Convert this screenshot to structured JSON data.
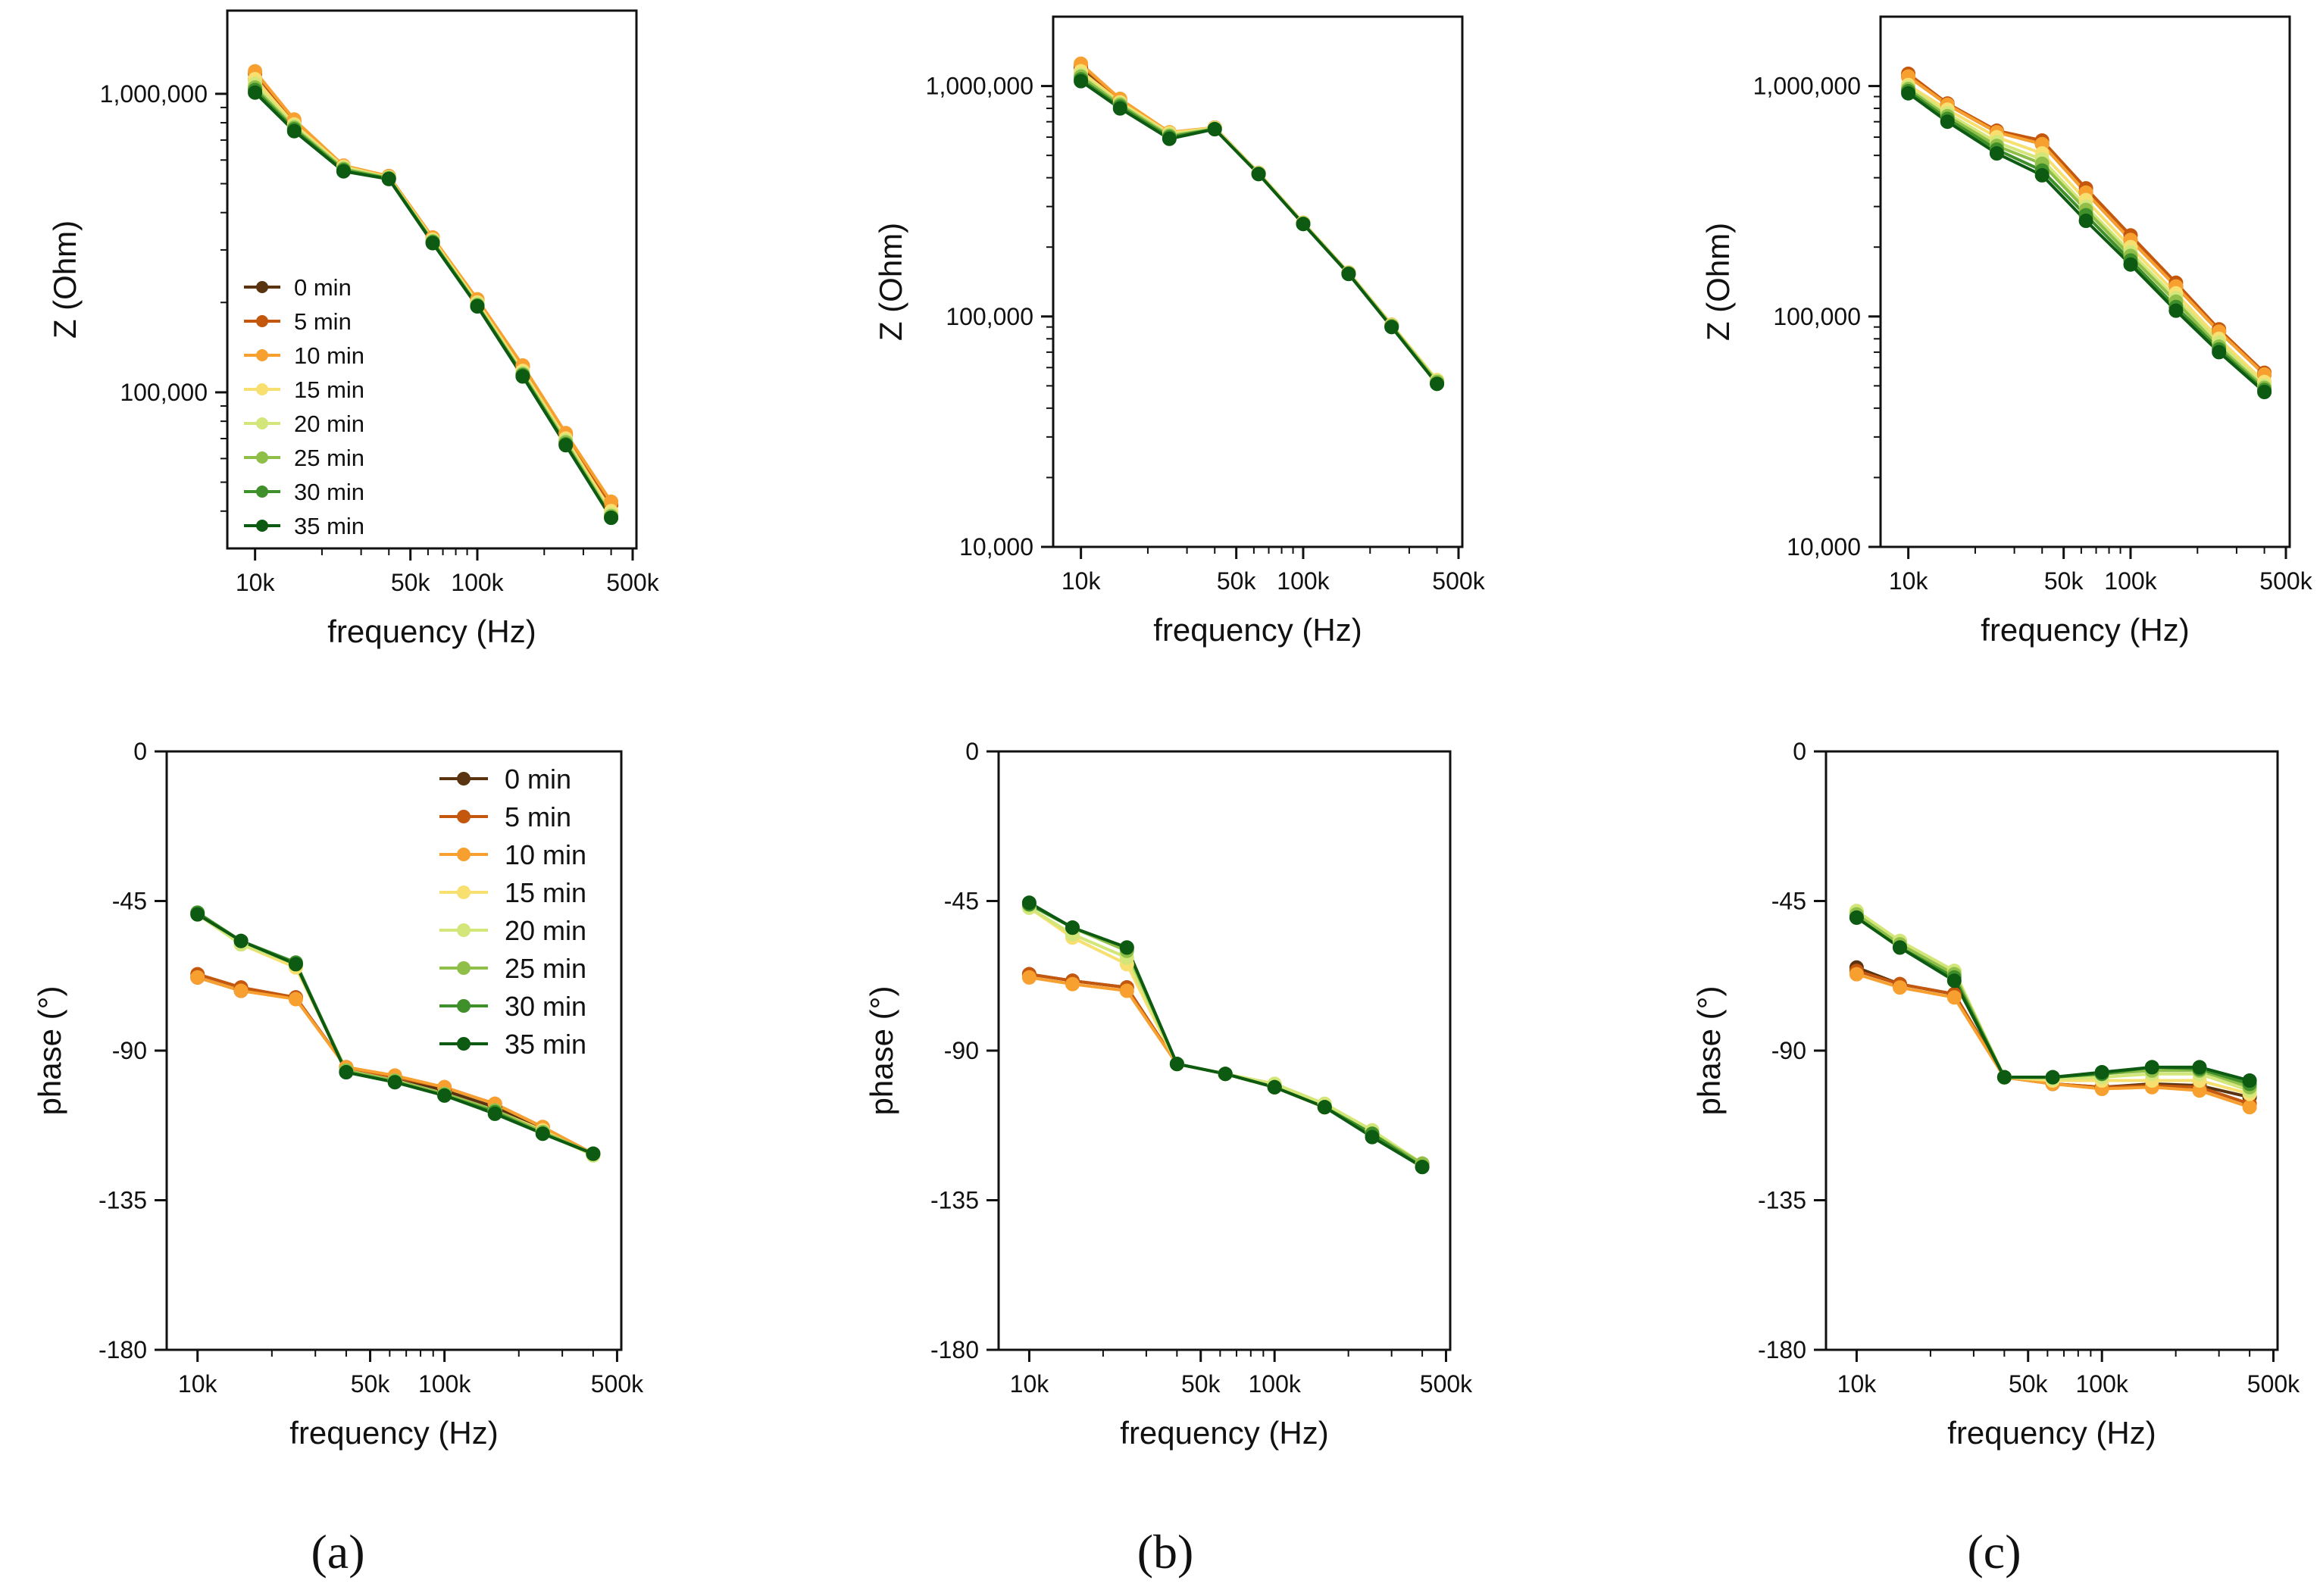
{
  "figure": {
    "panel_labels": [
      "(a)",
      "(b)",
      "(c)"
    ],
    "series_names": [
      "0 min",
      "5 min",
      "10 min",
      "15 min",
      "20 min",
      "25 min",
      "30 min",
      "35 min"
    ],
    "series_colors": [
      "#5a3310",
      "#c4570e",
      "#f7a030",
      "#f7df70",
      "#d2e67a",
      "#8fbf48",
      "#3f8f2a",
      "#0d5a12"
    ]
  },
  "chart_data": [
    {
      "id": "a-top",
      "type": "line",
      "xscale": "log",
      "yscale": "log",
      "xlabel": "frequency (Hz)",
      "ylabel": "Z (Ohm)",
      "xlim": [
        7500,
        520000
      ],
      "ylim": [
        30000,
        1900000
      ],
      "xticks": [
        10000,
        50000,
        100000,
        500000
      ],
      "xticklabels": [
        "10k",
        "50k",
        "100k",
        "500k"
      ],
      "yticks": [
        100000,
        1000000
      ],
      "yticklabels": [
        "100,000",
        "1,000,000"
      ],
      "legend": "left",
      "legend_style": "small",
      "x": [
        10000,
        15000,
        25000,
        40000,
        63000,
        100000,
        160000,
        250000,
        400000
      ],
      "series": [
        {
          "name": "0 min",
          "values": [
            1120000,
            790000,
            560000,
            520000,
            320000,
            195000,
            115000,
            68000,
            39000
          ]
        },
        {
          "name": "5 min",
          "values": [
            1170000,
            810000,
            570000,
            530000,
            330000,
            203000,
            122000,
            72000,
            42000
          ]
        },
        {
          "name": "10 min",
          "values": [
            1190000,
            820000,
            575000,
            530000,
            330000,
            205000,
            123000,
            73000,
            43000
          ]
        },
        {
          "name": "15 min",
          "values": [
            1120000,
            790000,
            570000,
            525000,
            325000,
            200000,
            118000,
            70000,
            40000
          ]
        },
        {
          "name": "20 min",
          "values": [
            1080000,
            780000,
            565000,
            525000,
            322000,
            198000,
            116000,
            69000,
            39000
          ]
        },
        {
          "name": "25 min",
          "values": [
            1050000,
            770000,
            560000,
            522000,
            320000,
            196000,
            115000,
            68000,
            38500
          ]
        },
        {
          "name": "30 min",
          "values": [
            1030000,
            760000,
            555000,
            520000,
            318000,
            195000,
            114000,
            67000,
            38000
          ]
        },
        {
          "name": "35 min",
          "values": [
            1010000,
            750000,
            550000,
            518000,
            316000,
            194000,
            113000,
            66500,
            38000
          ]
        }
      ]
    },
    {
      "id": "b-top",
      "type": "line",
      "xscale": "log",
      "yscale": "log",
      "xlabel": "frequency (Hz)",
      "ylabel": "Z (Ohm)",
      "xlim": [
        7500,
        520000
      ],
      "ylim": [
        10000,
        2000000
      ],
      "xticks": [
        10000,
        50000,
        100000,
        500000
      ],
      "xticklabels": [
        "10k",
        "50k",
        "100k",
        "500k"
      ],
      "yticks": [
        10000,
        100000,
        1000000
      ],
      "yticklabels": [
        "10,000",
        "100,000",
        "1,000,000"
      ],
      "legend": "none",
      "x": [
        10000,
        15000,
        25000,
        40000,
        63000,
        100000,
        160000,
        250000,
        400000
      ],
      "series": [
        {
          "name": "0 min",
          "values": [
            1200000,
            860000,
            620000,
            660000,
            420000,
            255000,
            155000,
            92000,
            52000
          ]
        },
        {
          "name": "5 min",
          "values": [
            1230000,
            870000,
            625000,
            660000,
            420000,
            255000,
            155000,
            92000,
            52000
          ]
        },
        {
          "name": "10 min",
          "values": [
            1250000,
            880000,
            630000,
            660000,
            420000,
            255000,
            155000,
            92000,
            52000
          ]
        },
        {
          "name": "15 min",
          "values": [
            1160000,
            850000,
            625000,
            658000,
            420000,
            255000,
            155000,
            92000,
            53000
          ]
        },
        {
          "name": "20 min",
          "values": [
            1120000,
            840000,
            615000,
            655000,
            418000,
            254000,
            154000,
            91000,
            52500
          ]
        },
        {
          "name": "25 min",
          "values": [
            1100000,
            830000,
            608000,
            652000,
            416000,
            253000,
            154000,
            91000,
            52000
          ]
        },
        {
          "name": "30 min",
          "values": [
            1070000,
            815000,
            600000,
            650000,
            415000,
            252000,
            153000,
            90000,
            51000
          ]
        },
        {
          "name": "35 min",
          "values": [
            1050000,
            800000,
            590000,
            650000,
            415000,
            252000,
            153000,
            90000,
            51000
          ]
        }
      ]
    },
    {
      "id": "c-top",
      "type": "line",
      "xscale": "log",
      "yscale": "log",
      "xlabel": "frequency (Hz)",
      "ylabel": "Z (Ohm)",
      "xlim": [
        7500,
        520000
      ],
      "ylim": [
        10000,
        2000000
      ],
      "xticks": [
        10000,
        50000,
        100000,
        500000
      ],
      "xticklabels": [
        "10k",
        "50k",
        "100k",
        "500k"
      ],
      "yticks": [
        10000,
        100000,
        1000000
      ],
      "yticklabels": [
        "10,000",
        "100,000",
        "1,000,000"
      ],
      "legend": "none",
      "x": [
        10000,
        15000,
        25000,
        40000,
        63000,
        100000,
        160000,
        250000,
        400000
      ],
      "series": [
        {
          "name": "0 min",
          "values": [
            1100000,
            830000,
            630000,
            560000,
            345000,
            215000,
            135000,
            86000,
            56000
          ]
        },
        {
          "name": "5 min",
          "values": [
            1130000,
            840000,
            640000,
            580000,
            360000,
            225000,
            140000,
            88000,
            57000
          ]
        },
        {
          "name": "10 min",
          "values": [
            1100000,
            830000,
            630000,
            560000,
            345000,
            215000,
            135000,
            86000,
            56000
          ]
        },
        {
          "name": "15 min",
          "values": [
            1010000,
            790000,
            600000,
            510000,
            320000,
            200000,
            126000,
            80000,
            52000
          ]
        },
        {
          "name": "20 min",
          "values": [
            990000,
            760000,
            570000,
            480000,
            300000,
            190000,
            120000,
            77000,
            50000
          ]
        },
        {
          "name": "25 min",
          "values": [
            970000,
            740000,
            550000,
            460000,
            290000,
            183000,
            116000,
            74000,
            49000
          ]
        },
        {
          "name": "30 min",
          "values": [
            950000,
            720000,
            530000,
            430000,
            275000,
            175000,
            110000,
            72000,
            48000
          ]
        },
        {
          "name": "35 min",
          "values": [
            930000,
            700000,
            510000,
            410000,
            260000,
            168000,
            106000,
            70000,
            47000
          ]
        }
      ]
    },
    {
      "id": "a-bottom",
      "type": "line",
      "xscale": "log",
      "yscale": "linear",
      "xlabel": "frequency (Hz)",
      "ylabel": "phase (°)",
      "xlim": [
        7500,
        520000
      ],
      "ylim": [
        -180,
        0
      ],
      "xticks": [
        10000,
        50000,
        100000,
        500000
      ],
      "xticklabels": [
        "10k",
        "50k",
        "100k",
        "500k"
      ],
      "yticks": [
        0,
        -45,
        -90,
        -135,
        -180
      ],
      "yticklabels": [
        "0",
        "-45",
        "-90",
        "-135",
        "-180"
      ],
      "legend": "top-right",
      "legend_style": "large",
      "x": [
        10000,
        15000,
        25000,
        40000,
        63000,
        100000,
        160000,
        250000,
        400000
      ],
      "series": [
        {
          "name": "0 min",
          "values": [
            -68,
            -72,
            -74,
            -95,
            -98,
            -102,
            -107,
            -114,
            -121
          ]
        },
        {
          "name": "5 min",
          "values": [
            -67,
            -71,
            -74,
            -95,
            -98,
            -101,
            -106,
            -113,
            -121
          ]
        },
        {
          "name": "10 min",
          "values": [
            -68,
            -72,
            -74.5,
            -95,
            -97.5,
            -101,
            -106,
            -113,
            -121
          ]
        },
        {
          "name": "15 min",
          "values": [
            -49,
            -58,
            -65,
            -96,
            -99,
            -103,
            -108,
            -114,
            -121.5
          ]
        },
        {
          "name": "20 min",
          "values": [
            -49,
            -58,
            -64,
            -96,
            -99,
            -103,
            -108,
            -114.5,
            -121.5
          ]
        },
        {
          "name": "25 min",
          "values": [
            -48.5,
            -57,
            -64,
            -96,
            -99,
            -103,
            -108,
            -114.5,
            -121
          ]
        },
        {
          "name": "30 min",
          "values": [
            -48.5,
            -57,
            -63.5,
            -96.5,
            -99.5,
            -103.5,
            -108.5,
            -115,
            -121
          ]
        },
        {
          "name": "35 min",
          "values": [
            -49,
            -57,
            -64,
            -96.5,
            -99.5,
            -103.5,
            -109,
            -115,
            -121
          ]
        }
      ]
    },
    {
      "id": "b-bottom",
      "type": "line",
      "xscale": "log",
      "yscale": "linear",
      "xlabel": "frequency (Hz)",
      "ylabel": "phase (°)",
      "xlim": [
        7500,
        520000
      ],
      "ylim": [
        -180,
        0
      ],
      "xticks": [
        10000,
        50000,
        100000,
        500000
      ],
      "xticklabels": [
        "10k",
        "50k",
        "100k",
        "500k"
      ],
      "yticks": [
        0,
        -45,
        -90,
        -135,
        -180
      ],
      "yticklabels": [
        "0",
        "-45",
        "-90",
        "-135",
        "-180"
      ],
      "legend": "none",
      "x": [
        10000,
        15000,
        25000,
        40000,
        63000,
        100000,
        160000,
        250000,
        400000
      ],
      "series": [
        {
          "name": "0 min",
          "values": [
            -67,
            -69,
            -71,
            -94,
            -97,
            -101,
            -107,
            -115,
            -124
          ]
        },
        {
          "name": "5 min",
          "values": [
            -67,
            -69,
            -71,
            -94,
            -97,
            -101,
            -107,
            -115,
            -124
          ]
        },
        {
          "name": "10 min",
          "values": [
            -68,
            -70,
            -72,
            -94,
            -97,
            -101,
            -107,
            -115,
            -124
          ]
        },
        {
          "name": "15 min",
          "values": [
            -47,
            -56,
            -64,
            -94,
            -97,
            -100,
            -106,
            -114,
            -124
          ]
        },
        {
          "name": "20 min",
          "values": [
            -47,
            -55,
            -62,
            -94,
            -97,
            -100,
            -106,
            -114,
            -124
          ]
        },
        {
          "name": "25 min",
          "values": [
            -46,
            -53,
            -60,
            -94,
            -97,
            -101,
            -107,
            -115,
            -124
          ]
        },
        {
          "name": "30 min",
          "values": [
            -46,
            -53,
            -59,
            -94,
            -97,
            -101,
            -107,
            -115,
            -125
          ]
        },
        {
          "name": "35 min",
          "values": [
            -45.5,
            -53,
            -59,
            -94,
            -97,
            -101,
            -107,
            -116,
            -125
          ]
        }
      ]
    },
    {
      "id": "c-bottom",
      "type": "line",
      "xscale": "log",
      "yscale": "linear",
      "xlabel": "frequency (Hz)",
      "ylabel": "phase (°)",
      "xlim": [
        7500,
        520000
      ],
      "ylim": [
        -180,
        0
      ],
      "xticks": [
        10000,
        50000,
        100000,
        500000
      ],
      "xticklabels": [
        "10k",
        "50k",
        "100k",
        "500k"
      ],
      "yticks": [
        0,
        -45,
        -90,
        -135,
        -180
      ],
      "yticklabels": [
        "0",
        "-45",
        "-90",
        "-135",
        "-180"
      ],
      "legend": "none",
      "x": [
        10000,
        15000,
        25000,
        40000,
        63000,
        100000,
        160000,
        250000,
        400000
      ],
      "series": [
        {
          "name": "0 min",
          "values": [
            -65,
            -70,
            -73,
            -98,
            -100,
            -101,
            -100,
            -100.5,
            -104
          ]
        },
        {
          "name": "5 min",
          "values": [
            -66,
            -70,
            -73,
            -98,
            -100,
            -101,
            -100.5,
            -101,
            -106
          ]
        },
        {
          "name": "10 min",
          "values": [
            -67,
            -71,
            -74,
            -98,
            -100,
            -101.5,
            -101,
            -102,
            -107
          ]
        },
        {
          "name": "15 min",
          "values": [
            -48,
            -57,
            -66,
            -98,
            -99,
            -99,
            -99,
            -99,
            -103
          ]
        },
        {
          "name": "20 min",
          "values": [
            -48,
            -57,
            -66,
            -98,
            -98.5,
            -98,
            -97,
            -97,
            -102
          ]
        },
        {
          "name": "25 min",
          "values": [
            -49,
            -58,
            -67,
            -98,
            -98,
            -97,
            -96,
            -96,
            -101
          ]
        },
        {
          "name": "30 min",
          "values": [
            -50,
            -59,
            -68,
            -98,
            -98,
            -97,
            -95,
            -95.5,
            -100
          ]
        },
        {
          "name": "35 min",
          "values": [
            -50,
            -59,
            -69,
            -98,
            -98,
            -96.5,
            -95,
            -95,
            -99
          ]
        }
      ]
    }
  ]
}
